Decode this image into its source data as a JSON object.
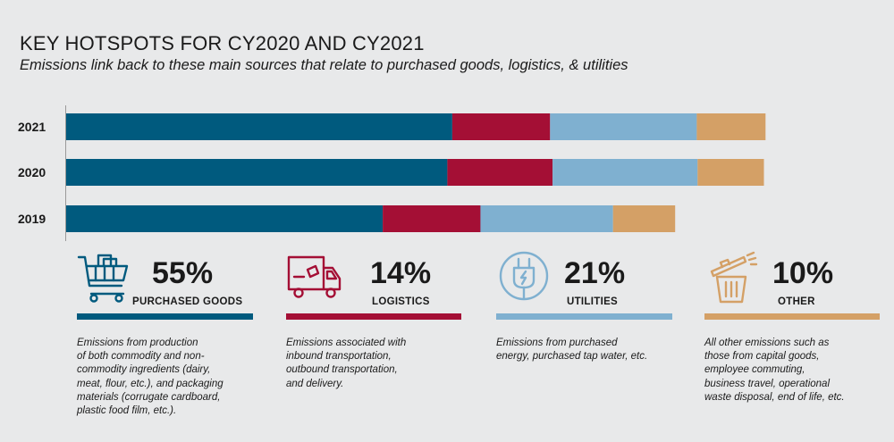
{
  "title": "KEY HOTSPOTS FOR CY2020 AND CY2021",
  "subtitle": "Emissions link back to these main sources that relate to purchased goods, logistics, & utilities",
  "colors": {
    "purchased_goods": "#005a7e",
    "logistics": "#a40f35",
    "utilities": "#7fb0d0",
    "other": "#d4a066"
  },
  "chart_data": {
    "type": "bar",
    "orientation": "horizontal",
    "stacked": true,
    "categories": [
      "2021",
      "2020",
      "2019"
    ],
    "series": [
      {
        "name": "PURCHASED GOODS",
        "color": "#005a7e",
        "values": [
          466,
          460,
          382
        ]
      },
      {
        "name": "LOGISTICS",
        "color": "#a40f35",
        "values": [
          118,
          127,
          118
        ]
      },
      {
        "name": "UTILITIES",
        "color": "#7fb0d0",
        "values": [
          177,
          175,
          160
        ]
      },
      {
        "name": "OTHER",
        "color": "#d4a066",
        "values": [
          83,
          80,
          75
        ]
      }
    ],
    "xlim": [
      0,
      930
    ],
    "grid": false,
    "x_axis_shown": false
  },
  "categories_legend": [
    {
      "key": "purchased_goods",
      "percent": "55%",
      "label": "PURCHASED GOODS",
      "icon": "shopping-cart-icon",
      "description": [
        "Emissions from production",
        "of both commodity and non-",
        "commodity ingredients (dairy,",
        "meat, flour, etc.), and packaging",
        "materials (corrugate cardboard,",
        "plastic food film, etc.)."
      ]
    },
    {
      "key": "logistics",
      "percent": "14%",
      "label": "LOGISTICS",
      "icon": "delivery-truck-icon",
      "description": [
        "Emissions associated with",
        "inbound transportation,",
        "outbound transportation,",
        "and delivery."
      ]
    },
    {
      "key": "utilities",
      "percent": "21%",
      "label": "UTILITIES",
      "icon": "power-plug-icon",
      "description": [
        "Emissions from purchased",
        "energy, purchased tap water, etc."
      ]
    },
    {
      "key": "other",
      "percent": "10%",
      "label": "OTHER",
      "icon": "trash-bin-icon",
      "description": [
        "All other emissions such as",
        "those from capital goods,",
        "employee commuting,",
        "business travel, operational",
        "waste disposal, end of life, etc."
      ]
    }
  ]
}
